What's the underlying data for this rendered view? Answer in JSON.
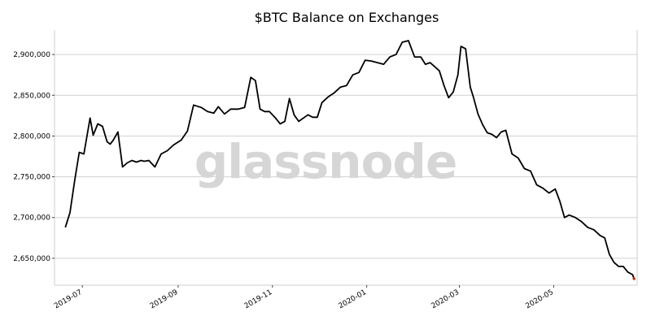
{
  "chart_data": {
    "type": "line",
    "title": "$BTC Balance on Exchanges",
    "watermark": "glassnode",
    "xlabel": "",
    "ylabel": "",
    "grid": "horizontal",
    "line_color": "#000000",
    "xlim": [
      "2019-06-13",
      "2020-06-24"
    ],
    "ylim": [
      2617000,
      2930000
    ],
    "yticks": [
      {
        "value": 2650000,
        "label": "2,650,000"
      },
      {
        "value": 2700000,
        "label": "2,700,000"
      },
      {
        "value": 2750000,
        "label": "2,750,000"
      },
      {
        "value": 2800000,
        "label": "2,800,000"
      },
      {
        "value": 2850000,
        "label": "2,850,000"
      },
      {
        "value": 2900000,
        "label": "2,900,000"
      }
    ],
    "xticks": [
      {
        "date": "2019-07-01",
        "label": "2019-07"
      },
      {
        "date": "2019-09-01",
        "label": "2019-09"
      },
      {
        "date": "2019-11-01",
        "label": "2019-11"
      },
      {
        "date": "2020-01-01",
        "label": "2020-01"
      },
      {
        "date": "2020-03-01",
        "label": "2020-03"
      },
      {
        "date": "2020-05-01",
        "label": "2020-05"
      }
    ],
    "series": [
      {
        "x": [
          "2019-06-20",
          "2019-06-23",
          "2019-06-26",
          "2019-06-29",
          "2019-07-02",
          "2019-07-04",
          "2019-07-06",
          "2019-07-08",
          "2019-07-11",
          "2019-07-14",
          "2019-07-17",
          "2019-07-19",
          "2019-07-21",
          "2019-07-24",
          "2019-07-27",
          "2019-07-30",
          "2019-08-02",
          "2019-08-05",
          "2019-08-08",
          "2019-08-10",
          "2019-08-13",
          "2019-08-17",
          "2019-08-21",
          "2019-08-25",
          "2019-08-29",
          "2019-09-03",
          "2019-09-07",
          "2019-09-11",
          "2019-09-16",
          "2019-09-20",
          "2019-09-24",
          "2019-09-27",
          "2019-10-01",
          "2019-10-05",
          "2019-10-10",
          "2019-10-14",
          "2019-10-18",
          "2019-10-21",
          "2019-10-24",
          "2019-10-27",
          "2019-10-30",
          "2019-11-03",
          "2019-11-06",
          "2019-11-09",
          "2019-11-12",
          "2019-11-15",
          "2019-11-18",
          "2019-11-21",
          "2019-11-24",
          "2019-11-27",
          "2019-11-30",
          "2019-12-03",
          "2019-12-07",
          "2019-12-11",
          "2019-12-15",
          "2019-12-19",
          "2019-12-23",
          "2019-12-27",
          "2019-12-31",
          "2020-01-04",
          "2020-01-08",
          "2020-01-12",
          "2020-01-16",
          "2020-01-20",
          "2020-01-24",
          "2020-01-28",
          "2020-02-01",
          "2020-02-05",
          "2020-02-08",
          "2020-02-11",
          "2020-02-14",
          "2020-02-17",
          "2020-02-20",
          "2020-02-23",
          "2020-02-26",
          "2020-02-29",
          "2020-03-02",
          "2020-03-05",
          "2020-03-08",
          "2020-03-10",
          "2020-03-13",
          "2020-03-16",
          "2020-03-19",
          "2020-03-22",
          "2020-03-25",
          "2020-03-28",
          "2020-03-31",
          "2020-04-04",
          "2020-04-08",
          "2020-04-12",
          "2020-04-16",
          "2020-04-20",
          "2020-04-24",
          "2020-04-28",
          "2020-05-02",
          "2020-05-05",
          "2020-05-08",
          "2020-05-11",
          "2020-05-15",
          "2020-05-19",
          "2020-05-23",
          "2020-05-27",
          "2020-05-31",
          "2020-06-03",
          "2020-06-06",
          "2020-06-09",
          "2020-06-12",
          "2020-06-15",
          "2020-06-18",
          "2020-06-21",
          "2020-06-22"
        ],
        "y": [
          2688000,
          2706000,
          2745000,
          2780000,
          2778000,
          2800000,
          2822000,
          2801000,
          2815000,
          2812000,
          2793000,
          2790000,
          2795000,
          2805000,
          2762000,
          2767000,
          2770000,
          2768000,
          2770000,
          2769000,
          2770000,
          2762000,
          2778000,
          2782000,
          2789000,
          2795000,
          2806000,
          2838000,
          2835000,
          2830000,
          2828000,
          2836000,
          2827000,
          2833000,
          2833000,
          2835000,
          2872000,
          2868000,
          2833000,
          2830000,
          2830000,
          2822000,
          2815000,
          2818000,
          2846000,
          2826000,
          2818000,
          2822000,
          2826000,
          2823000,
          2823000,
          2841000,
          2848000,
          2853000,
          2860000,
          2862000,
          2875000,
          2878000,
          2893000,
          2892000,
          2890000,
          2888000,
          2897000,
          2900000,
          2915000,
          2917000,
          2897000,
          2897000,
          2888000,
          2890000,
          2885000,
          2880000,
          2862000,
          2847000,
          2854000,
          2875000,
          2910000,
          2907000,
          2860000,
          2848000,
          2827000,
          2814000,
          2804000,
          2802000,
          2798000,
          2805000,
          2807000,
          2778000,
          2773000,
          2760000,
          2757000,
          2740000,
          2736000,
          2730000,
          2735000,
          2720000,
          2700000,
          2703000,
          2700000,
          2695000,
          2688000,
          2685000,
          2678000,
          2675000,
          2655000,
          2645000,
          2640000,
          2640000,
          2633000,
          2630000,
          2625000
        ]
      }
    ]
  }
}
